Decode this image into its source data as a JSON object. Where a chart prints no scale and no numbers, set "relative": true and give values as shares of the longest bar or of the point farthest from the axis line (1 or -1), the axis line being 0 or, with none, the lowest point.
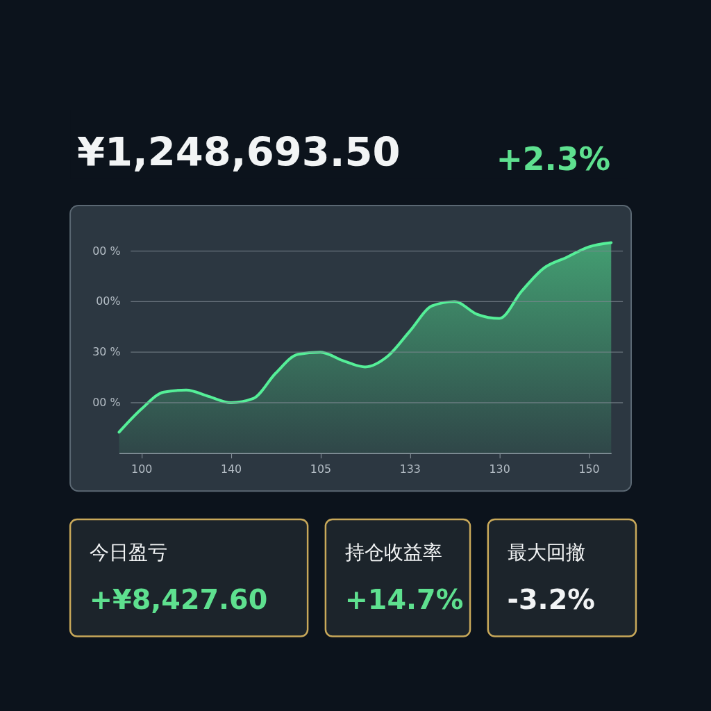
{
  "chart_data": [
    {
      "type": "other",
      "title": "¥1,248,693.50",
      "annotations": [
        "+2.3%"
      ],
      "color": "#5ee08f"
    },
    {
      "type": "area",
      "categories": [
        null,
        "100",
        null,
        null,
        null,
        "140",
        null,
        null,
        null,
        "105",
        null,
        null,
        null,
        "133",
        null,
        null,
        null,
        "130",
        null,
        null,
        null,
        "150",
        null
      ],
      "relative": true,
      "series": [
        {
          "color": "#55ef98",
          "values": [
            0.1,
            0.21,
            0.29,
            0.3,
            0.27,
            0.24,
            0.26,
            0.38,
            0.47,
            0.48,
            0.44,
            0.41,
            0.46,
            0.58,
            0.7,
            0.72,
            0.66,
            0.64,
            0.77,
            0.88,
            0.93,
            0.98,
            1.0
          ]
        }
      ],
      "ref_lines": [
        {
          "axis": "y",
          "value": 0.24,
          "color": "#7d8892"
        },
        {
          "axis": "y",
          "value": 0.48,
          "color": "#7d8892"
        },
        {
          "axis": "y",
          "value": 0.72,
          "color": "#7d8892"
        },
        {
          "axis": "y",
          "value": 0.96,
          "color": "#7d8892"
        }
      ],
      "annotations": [
        "00 %",
        "30 %",
        "00%",
        "00 %"
      ]
    },
    {
      "type": "other",
      "title": "今日盈亏",
      "annotations": [
        "+¥8,427.60"
      ],
      "color": "#5ee08f"
    },
    {
      "type": "other",
      "title": "持仓收益率",
      "annotations": [
        "+14.7%"
      ],
      "color": "#5ee08f"
    },
    {
      "type": "other",
      "title": "最大回撤",
      "annotations": [
        "-3.2%"
      ],
      "color": "#f2f4f5"
    }
  ]
}
